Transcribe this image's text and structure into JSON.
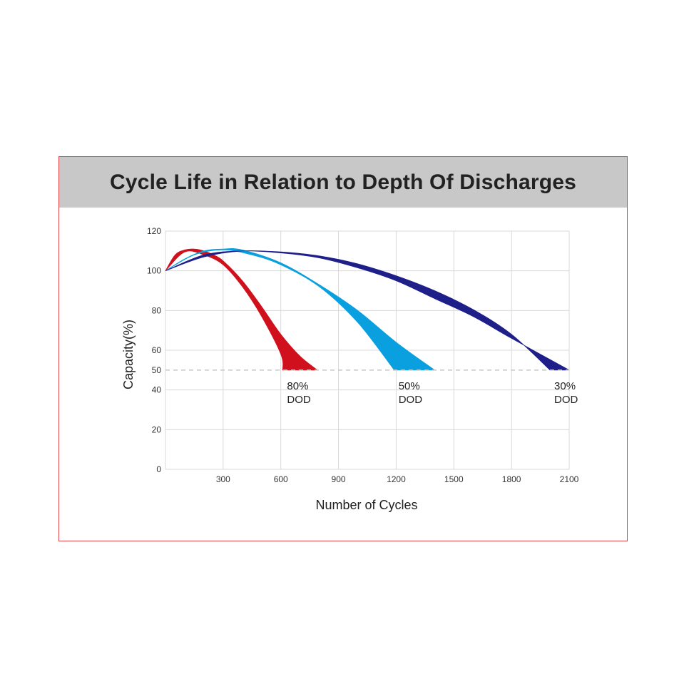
{
  "title": "Cycle Life in Relation to Depth Of Discharges",
  "chart_data": {
    "type": "area",
    "title": "Cycle Life in Relation to Depth Of Discharges",
    "xlabel": "Number of Cycles",
    "ylabel": "Capacity(%)",
    "xlim": [
      0,
      2100
    ],
    "ylim": [
      0,
      120
    ],
    "x_ticks": [
      "300",
      "600",
      "900",
      "1200",
      "1500",
      "1800",
      "2100"
    ],
    "y_ticks": [
      "0",
      "20",
      "40",
      "50",
      "60",
      "80",
      "100",
      "120"
    ],
    "grid": true,
    "reference_line": {
      "y": 50,
      "style": "dashed"
    },
    "colors": {
      "80": "#d0101c",
      "50": "#0aa0e0",
      "30": "#1f1f8a",
      "grid": "#d9d9d9",
      "reference": "#c8c8c8"
    },
    "series": [
      {
        "name": "80% DOD",
        "label_line1": "80%",
        "label_line2": "DOD",
        "upper_x": [
          0,
          50,
          100,
          150,
          200,
          250,
          300,
          400,
          500,
          600,
          700,
          790
        ],
        "upper_y": [
          100,
          108,
          110.5,
          111,
          110,
          108,
          105,
          95,
          82,
          68,
          57,
          50
        ],
        "lower_x": [
          0,
          100,
          200,
          300,
          400,
          500,
          600,
          610
        ],
        "lower_y": [
          100,
          109.5,
          108,
          103,
          92,
          77,
          58,
          50
        ]
      },
      {
        "name": "50% DOD",
        "label_line1": "50%",
        "label_line2": "DOD",
        "upper_x": [
          0,
          100,
          200,
          300,
          400,
          600,
          800,
          1000,
          1200,
          1400
        ],
        "upper_y": [
          100,
          106,
          110,
          111,
          110.5,
          104,
          93,
          80,
          64,
          50
        ],
        "lower_x": [
          0,
          150,
          300,
          450,
          600,
          800,
          1000,
          1190
        ],
        "lower_y": [
          100,
          108,
          110.5,
          108,
          103,
          92,
          74,
          50
        ]
      },
      {
        "name": "30% DOD",
        "label_line1": "30%",
        "label_line2": "DOD",
        "upper_x": [
          0,
          200,
          400,
          600,
          800,
          1000,
          1200,
          1400,
          1600,
          1800,
          2100
        ],
        "upper_y": [
          100,
          108,
          110,
          109,
          106.5,
          101.5,
          95,
          86,
          77,
          66,
          50
        ],
        "lower_x": [
          0,
          200,
          400,
          600,
          800,
          1000,
          1200,
          1400,
          1600,
          1800,
          2000
        ],
        "lower_y": [
          100,
          107,
          110,
          109.5,
          107.5,
          103.5,
          97.5,
          90,
          80.5,
          68,
          50
        ]
      }
    ]
  }
}
